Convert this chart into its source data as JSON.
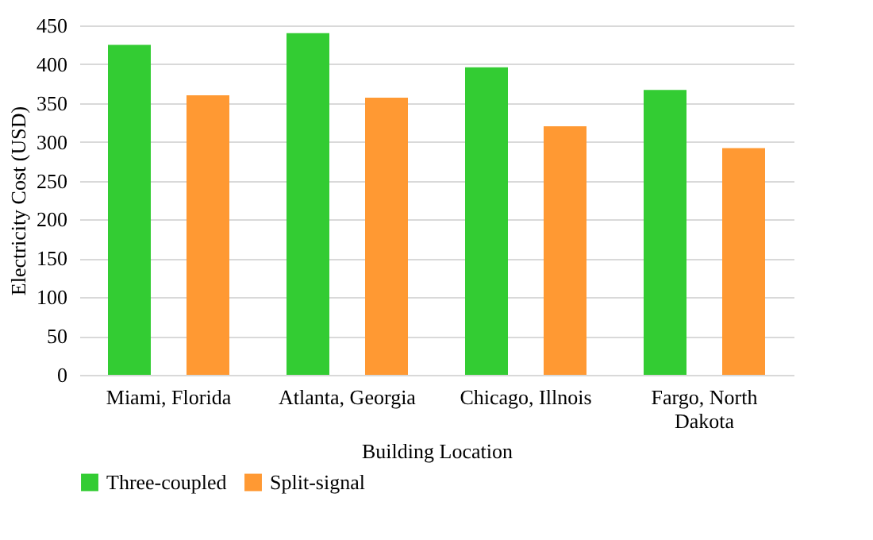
{
  "chart_data": {
    "type": "bar",
    "xlabel": "Building Location",
    "ylabel": "Electricity Cost (USD)",
    "categories": [
      "Miami, Florida",
      "Atlanta, Georgia",
      "Chicago, Illnois",
      "Fargo, North Dakota"
    ],
    "series": [
      {
        "name": "Three-coupled",
        "color": "#33cc33",
        "values": [
          425,
          440,
          396,
          367
        ]
      },
      {
        "name": "Split-signal",
        "color": "#ff9933",
        "values": [
          360,
          357,
          320,
          292
        ]
      }
    ],
    "ylim": [
      0,
      450
    ],
    "yticks": [
      0,
      50,
      100,
      150,
      200,
      250,
      300,
      350,
      400,
      450
    ],
    "grid": "y",
    "legend": "bottom"
  }
}
